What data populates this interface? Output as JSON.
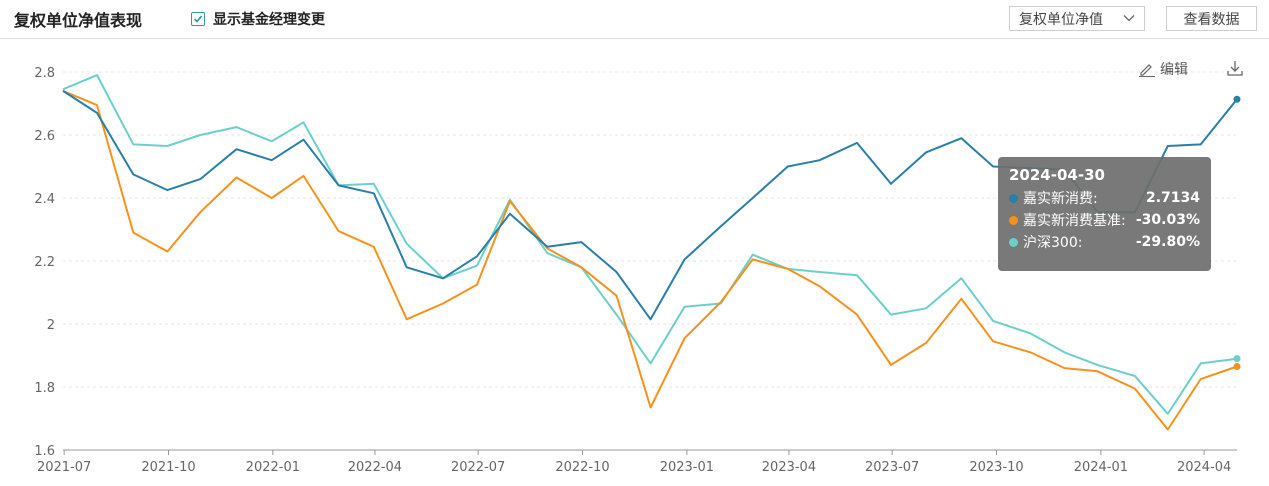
{
  "header": {
    "title": "复权单位净值表现",
    "toggle_label": "显示基金经理变更",
    "toggle_checked": true,
    "select_value": "复权单位净值",
    "view_data_button": "查看数据"
  },
  "toolbar": {
    "edit_label": "编辑"
  },
  "tooltip": {
    "date": "2024-04-30",
    "rows": [
      {
        "name": "嘉实新消费:",
        "value": "2.7134",
        "color": "#2a7fa8"
      },
      {
        "name": "嘉实新消费基准:",
        "value": "-30.03%",
        "color": "#f5921e"
      },
      {
        "name": "沪深300:",
        "value": "-29.80%",
        "color": "#6ccfca"
      }
    ]
  },
  "chart_data": {
    "type": "line",
    "x": [
      "2021-06-30",
      "2021-07-30",
      "2021-08-31",
      "2021-09-30",
      "2021-10-29",
      "2021-11-30",
      "2021-12-31",
      "2022-01-28",
      "2022-02-28",
      "2022-03-31",
      "2022-04-29",
      "2022-05-31",
      "2022-06-30",
      "2022-07-29",
      "2022-08-31",
      "2022-09-30",
      "2022-10-31",
      "2022-11-30",
      "2022-12-30",
      "2023-01-31",
      "2023-02-28",
      "2023-03-31",
      "2023-04-28",
      "2023-05-31",
      "2023-06-30",
      "2023-07-31",
      "2023-08-31",
      "2023-09-28",
      "2023-10-31",
      "2023-11-30",
      "2023-12-29",
      "2024-01-31",
      "2024-02-29",
      "2024-03-29",
      "2024-04-30"
    ],
    "x_tick_labels": [
      "2021-07",
      "2021-10",
      "2022-01",
      "2022-04",
      "2022-07",
      "2022-10",
      "2023-01",
      "2023-04",
      "2023-07",
      "2023-10",
      "2024-01",
      "2024-04"
    ],
    "y_ticks": [
      "1.6",
      "1.8",
      "2",
      "2.2",
      "2.4",
      "2.6",
      "2.8"
    ],
    "ylim": [
      1.6,
      2.8
    ],
    "grid": true,
    "series": [
      {
        "name": "嘉实新消费",
        "color": "#2a7fa8",
        "values": [
          2.74,
          2.67,
          2.475,
          2.425,
          2.46,
          2.555,
          2.52,
          2.585,
          2.44,
          2.415,
          2.18,
          2.145,
          2.215,
          2.35,
          2.245,
          2.26,
          2.165,
          2.015,
          2.205,
          2.31,
          2.4,
          2.5,
          2.52,
          2.575,
          2.445,
          2.545,
          2.59,
          2.5,
          2.495,
          2.49,
          2.355,
          2.355,
          2.565,
          2.57,
          2.7134
        ]
      },
      {
        "name": "嘉实新消费基准",
        "color": "#f5921e",
        "values": [
          2.74,
          2.695,
          2.29,
          2.23,
          2.355,
          2.465,
          2.4,
          2.47,
          2.295,
          2.245,
          2.015,
          2.065,
          2.125,
          2.39,
          2.24,
          2.18,
          2.09,
          1.735,
          1.955,
          2.07,
          2.205,
          2.175,
          2.12,
          2.03,
          1.87,
          1.94,
          2.08,
          1.945,
          1.91,
          1.86,
          1.85,
          1.795,
          1.665,
          1.825,
          1.865
        ]
      },
      {
        "name": "沪深300",
        "color": "#6ccfca",
        "values": [
          2.745,
          2.79,
          2.57,
          2.565,
          2.6,
          2.625,
          2.58,
          2.64,
          2.44,
          2.445,
          2.255,
          2.145,
          2.185,
          2.395,
          2.225,
          2.18,
          2.03,
          1.875,
          2.055,
          2.065,
          2.22,
          2.175,
          2.165,
          2.155,
          2.03,
          2.05,
          2.145,
          2.01,
          1.97,
          1.91,
          1.87,
          1.835,
          1.715,
          1.875,
          1.89
        ]
      }
    ]
  }
}
